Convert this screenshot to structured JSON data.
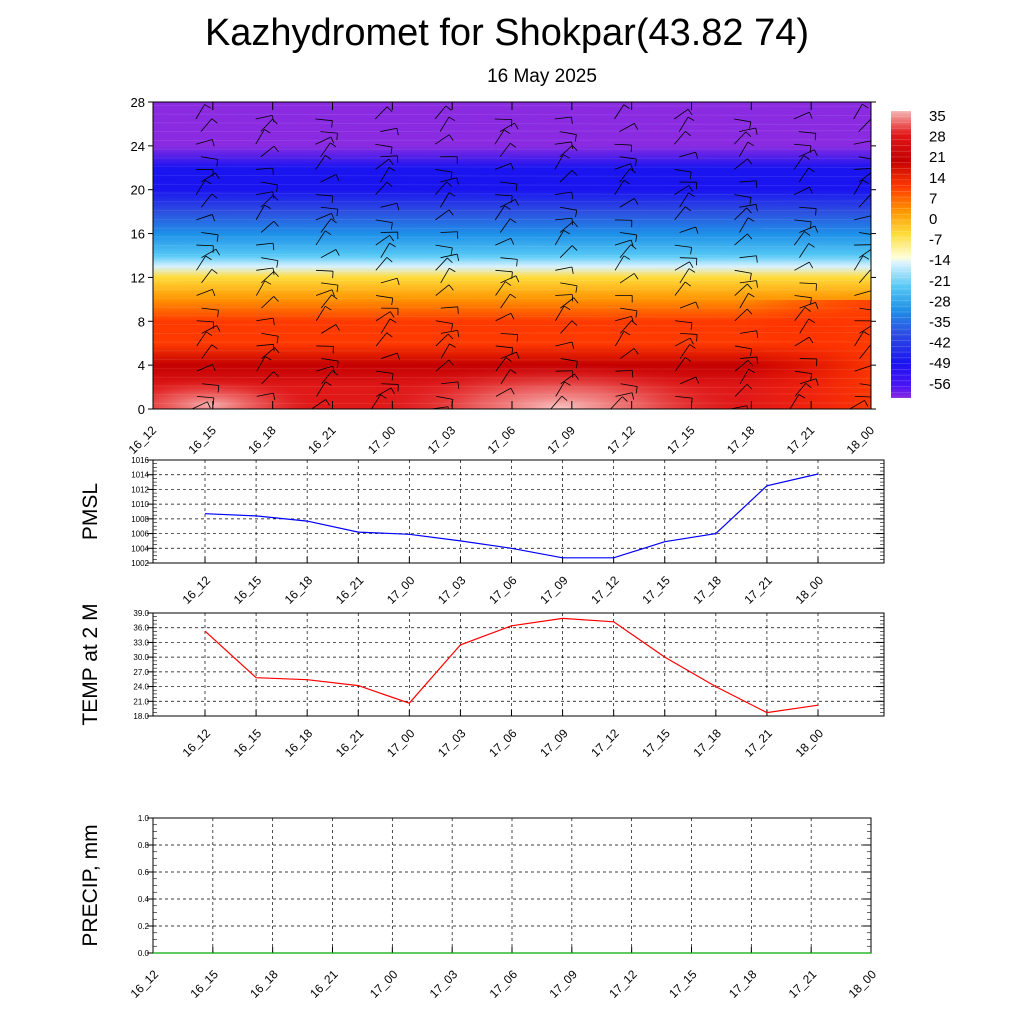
{
  "title": "Kazhydromet for Shokpar(43.82 74)",
  "subtitle": "16 May 2025",
  "time_labels": [
    "16_12",
    "16_15",
    "16_18",
    "16_21",
    "17_00",
    "17_03",
    "17_06",
    "17_09",
    "17_12",
    "17_15",
    "17_18",
    "17_21",
    "18_00"
  ],
  "chart_data": [
    {
      "type": "heatmap",
      "ylim": [
        0,
        28
      ],
      "yticks": [
        "0",
        "4",
        "8",
        "12",
        "16",
        "20",
        "24",
        "28"
      ],
      "colorbar": {
        "labels": [
          "35",
          "28",
          "21",
          "14",
          "7",
          "0",
          "-7",
          "-14",
          "-21",
          "-28",
          "-35",
          "-42",
          "-49",
          "-56"
        ],
        "stops": [
          {
            "v": 38,
            "c": "#f7b6b6"
          },
          {
            "v": 30,
            "c": "#e01818"
          },
          {
            "v": 21,
            "c": "#c40000"
          },
          {
            "v": 12,
            "c": "#ff3a00"
          },
          {
            "v": 4,
            "c": "#ff9400"
          },
          {
            "v": -4,
            "c": "#ffdc3c"
          },
          {
            "v": -12,
            "c": "#ffffd8"
          },
          {
            "v": -14,
            "c": "#d8f2ff"
          },
          {
            "v": -22,
            "c": "#55c8f5"
          },
          {
            "v": -30,
            "c": "#1e90e8"
          },
          {
            "v": -38,
            "c": "#2d4ee0"
          },
          {
            "v": -48,
            "c": "#1a14f0"
          },
          {
            "v": -56,
            "c": "#4a14f5"
          },
          {
            "v": -60,
            "c": "#8a2be2"
          }
        ]
      },
      "note_wind": "wind barbs shown at every level and time"
    },
    {
      "type": "line",
      "ylabel": "PMSL",
      "ylim": [
        1002,
        1016
      ],
      "yticks": [
        "1002",
        "1004",
        "1006",
        "1008",
        "1010",
        "1012",
        "1014",
        "1016"
      ],
      "color": "#0000ff",
      "values": [
        1008.7,
        1008.4,
        1007.7,
        1006.2,
        1005.9,
        1005.0,
        1004.0,
        1002.7,
        1002.7,
        1004.9,
        1006.0,
        1012.5,
        1014.1
      ]
    },
    {
      "type": "line",
      "ylabel": "TEMP at 2 M",
      "ylim": [
        18,
        39
      ],
      "yticks": [
        "18.0",
        "21.0",
        "24.0",
        "27.0",
        "30.0",
        "33.0",
        "36.0",
        "39.0"
      ],
      "color": "#ff0000",
      "values": [
        35.3,
        25.8,
        25.4,
        24.2,
        20.6,
        32.5,
        36.4,
        37.9,
        37.2,
        30.0,
        24.0,
        18.7,
        20.2
      ]
    },
    {
      "type": "line",
      "ylabel": "PRECIP, mm",
      "ylim": [
        0,
        1
      ],
      "yticks": [
        "0.0",
        "0.2",
        "0.4",
        "0.6",
        "0.8",
        "1.0"
      ],
      "color": "#00aa00",
      "values": [
        0,
        0,
        0,
        0,
        0,
        0,
        0,
        0,
        0,
        0,
        0,
        0,
        0
      ]
    }
  ]
}
